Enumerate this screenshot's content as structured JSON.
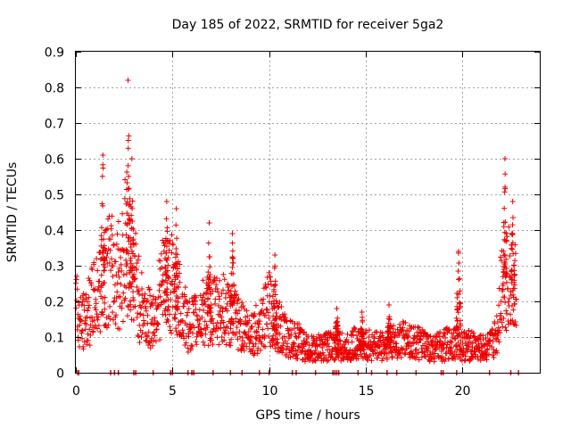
{
  "chart_data": {
    "type": "scatter",
    "title": "Day 185 of 2022, SRMTID for receiver 5ga2",
    "xlabel": "GPS time / hours",
    "ylabel": "SRMTID / TECUs",
    "xlim": [
      0,
      24
    ],
    "ylim": [
      0,
      0.9
    ],
    "x_ticks": [
      0,
      5,
      10,
      15,
      20
    ],
    "x_tick_labels": [
      "0",
      "5",
      "10",
      "15",
      "20"
    ],
    "y_ticks": [
      0,
      0.1,
      0.2,
      0.3,
      0.4,
      0.5,
      0.6,
      0.7,
      0.8,
      0.9
    ],
    "y_tick_labels": [
      "0",
      "0.1",
      "0.2",
      "0.3",
      "0.4",
      "0.5",
      "0.6",
      "0.7",
      "0.8",
      "0.9"
    ],
    "grid": true,
    "marker": "+",
    "color": "#ee0000",
    "series": [
      {
        "name": "SRMTID",
        "profile_x": [
          0.0,
          0.1,
          0.3,
          0.6,
          1.0,
          1.3,
          1.5,
          1.8,
          2.0,
          2.3,
          2.5,
          2.7,
          3.0,
          3.3,
          3.7,
          4.0,
          4.3,
          4.6,
          5.0,
          5.4,
          5.8,
          6.2,
          6.6,
          7.0,
          7.5,
          8.0,
          8.5,
          9.0,
          9.5,
          10.0,
          10.4,
          10.8,
          11.2,
          11.6,
          12.0,
          12.5,
          13.0,
          13.5,
          14.0,
          14.5,
          15.0,
          15.5,
          16.0,
          16.5,
          17.0,
          17.5,
          18.0,
          18.5,
          19.0,
          19.5,
          20.0,
          20.5,
          21.0,
          21.5,
          21.8,
          22.0,
          22.2,
          22.4,
          22.6,
          22.8
        ],
        "profile_y": [
          0.24,
          0.16,
          0.14,
          0.17,
          0.22,
          0.26,
          0.32,
          0.3,
          0.28,
          0.3,
          0.36,
          0.4,
          0.3,
          0.21,
          0.16,
          0.16,
          0.22,
          0.27,
          0.26,
          0.2,
          0.14,
          0.15,
          0.18,
          0.18,
          0.19,
          0.17,
          0.14,
          0.12,
          0.13,
          0.19,
          0.15,
          0.11,
          0.1,
          0.09,
          0.07,
          0.07,
          0.08,
          0.08,
          0.07,
          0.09,
          0.08,
          0.08,
          0.08,
          0.09,
          0.1,
          0.09,
          0.08,
          0.07,
          0.08,
          0.09,
          0.08,
          0.08,
          0.07,
          0.08,
          0.12,
          0.26,
          0.3,
          0.28,
          0.26,
          0.24
        ],
        "peaks": [
          {
            "x": 1.4,
            "y": 0.61
          },
          {
            "x": 2.7,
            "y": 0.82
          },
          {
            "x": 2.9,
            "y": 0.6
          },
          {
            "x": 4.7,
            "y": 0.48
          },
          {
            "x": 5.2,
            "y": 0.46
          },
          {
            "x": 6.9,
            "y": 0.42
          },
          {
            "x": 8.1,
            "y": 0.39
          },
          {
            "x": 10.3,
            "y": 0.33
          },
          {
            "x": 13.5,
            "y": 0.18
          },
          {
            "x": 14.8,
            "y": 0.17
          },
          {
            "x": 16.2,
            "y": 0.19
          },
          {
            "x": 19.8,
            "y": 0.34
          },
          {
            "x": 22.2,
            "y": 0.6
          },
          {
            "x": 22.6,
            "y": 0.48
          }
        ],
        "zero_marks_x": [
          0.1,
          0.15,
          1.8,
          2.0,
          2.2,
          3.0,
          3.1,
          4.0,
          4.9,
          5.0,
          5.8,
          6.0,
          6.1,
          7.1,
          8.0,
          8.6,
          9.5,
          10.0,
          11.2,
          11.4,
          12.4,
          13.3,
          13.4,
          13.5,
          13.6,
          14.6,
          15.3,
          16.1,
          16.6,
          17.6,
          18.9,
          19.0,
          19.7,
          21.4,
          22.5,
          22.9
        ]
      }
    ]
  }
}
